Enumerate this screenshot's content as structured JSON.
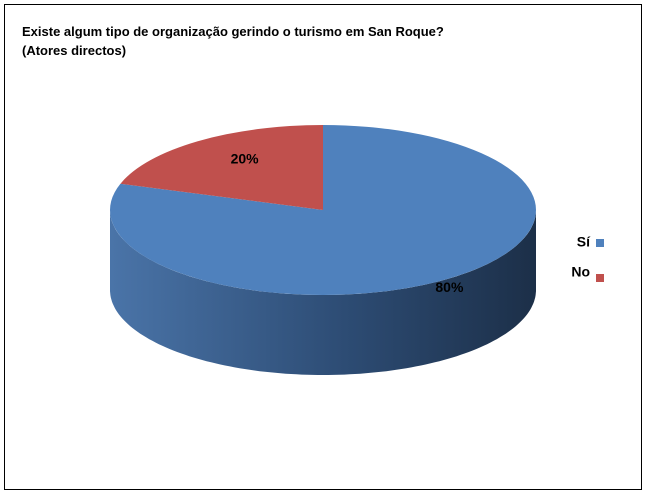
{
  "chart_data": {
    "type": "pie",
    "title": "Existe algum tipo de organização gerindo o turismo em San Roque? (Atores directos)",
    "categories": [
      "Sí",
      "No"
    ],
    "values": [
      80,
      20
    ],
    "value_labels": [
      "80%",
      "20%"
    ],
    "colors": [
      "#4f81bd",
      "#c0504d"
    ],
    "legend": "right"
  }
}
